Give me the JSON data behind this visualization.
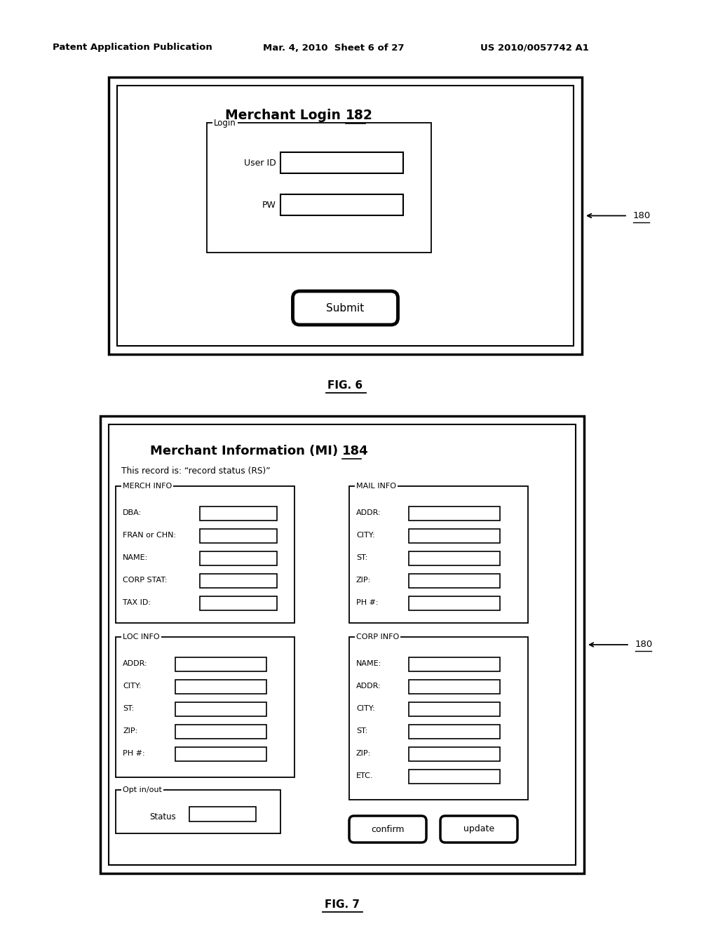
{
  "bg_color": "#ffffff",
  "header_left": "Patent Application Publication",
  "header_mid": "Mar. 4, 2010  Sheet 6 of 27",
  "header_right": "US 2010/0057742 A1",
  "fig6_title": "Merchant Login ",
  "fig6_title_num": "182",
  "fig6_label": "Login",
  "fig6_userid_label": "User ID",
  "fig6_pw_label": "PW",
  "fig6_submit": "Submit",
  "fig6_caption": "FIG. 6",
  "fig6_ref": "180",
  "fig7_title": "Merchant Information (MI) ",
  "fig7_title_num": "184",
  "fig7_record": "This record is: “record status (RS)”",
  "fig7_merch_label": "MERCH INFO",
  "fig7_merch_fields": [
    "DBA:",
    "FRAN or CHN:",
    "NAME:",
    "CORP STAT:",
    "TAX ID:"
  ],
  "fig7_mail_label": "MAIL INFO",
  "fig7_mail_fields": [
    "ADDR:",
    "CITY:",
    "ST:",
    "ZIP:",
    "PH #:"
  ],
  "fig7_loc_label": "LOC INFO",
  "fig7_loc_fields": [
    "ADDR:",
    "CITY:",
    "ST:",
    "ZIP:",
    "PH #:"
  ],
  "fig7_corp_label": "CORP INFO",
  "fig7_corp_fields": [
    "NAME:",
    "ADDR:",
    "CITY:",
    "ST:",
    "ZIP:",
    "ETC."
  ],
  "fig7_opt_label": "Opt in/out",
  "fig7_status": "Status",
  "fig7_confirm": "confirm",
  "fig7_update": "update",
  "fig7_caption": "FIG. 7",
  "fig7_ref": "180"
}
